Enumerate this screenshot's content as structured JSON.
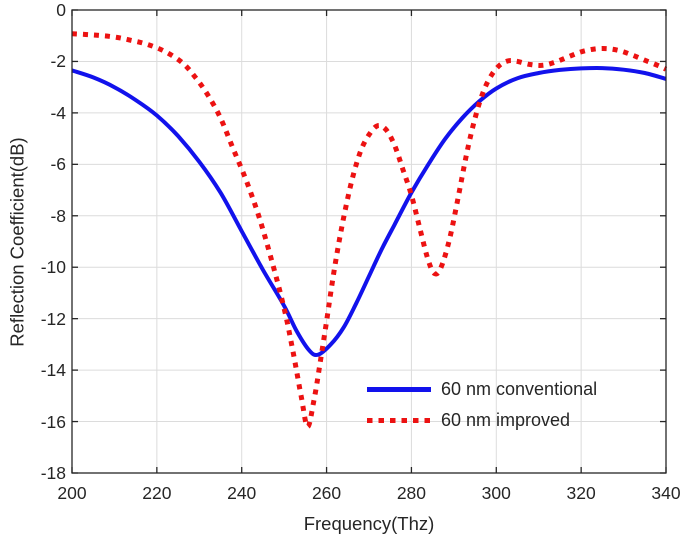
{
  "figure": {
    "background_color": "#ffffff",
    "axis_color": "#262626",
    "grid_color": "#dcdcdc",
    "tick_direction": "in"
  },
  "chart_data": {
    "type": "line",
    "title": "",
    "xlabel": "Frequency(Thz)",
    "ylabel": "Reflection Coefficient(dB)",
    "xlim": [
      200,
      340
    ],
    "ylim": [
      -18,
      0
    ],
    "xticks": [
      200,
      220,
      240,
      260,
      280,
      300,
      320,
      340
    ],
    "yticks": [
      0,
      -2,
      -4,
      -6,
      -8,
      -10,
      -12,
      -14,
      -16,
      -18
    ],
    "grid": true,
    "legend": {
      "position": "inside-lower-right",
      "border": false
    },
    "series": [
      {
        "name": "60 nm conventional",
        "color": "#1212ec",
        "line_style": "solid",
        "line_width": 4,
        "points": [
          [
            200,
            -2.35
          ],
          [
            205,
            -2.62
          ],
          [
            210,
            -3.0
          ],
          [
            215,
            -3.5
          ],
          [
            220,
            -4.1
          ],
          [
            225,
            -4.9
          ],
          [
            230,
            -5.9
          ],
          [
            235,
            -7.1
          ],
          [
            240,
            -8.6
          ],
          [
            245,
            -10.1
          ],
          [
            250,
            -11.5
          ],
          [
            253,
            -12.5
          ],
          [
            256,
            -13.25
          ],
          [
            258,
            -13.4
          ],
          [
            261,
            -13.0
          ],
          [
            264,
            -12.35
          ],
          [
            267,
            -11.4
          ],
          [
            270,
            -10.35
          ],
          [
            273,
            -9.3
          ],
          [
            276,
            -8.35
          ],
          [
            280,
            -7.1
          ],
          [
            284,
            -6.0
          ],
          [
            288,
            -5.0
          ],
          [
            292,
            -4.2
          ],
          [
            296,
            -3.55
          ],
          [
            300,
            -3.05
          ],
          [
            305,
            -2.65
          ],
          [
            310,
            -2.45
          ],
          [
            315,
            -2.33
          ],
          [
            320,
            -2.27
          ],
          [
            325,
            -2.26
          ],
          [
            330,
            -2.32
          ],
          [
            335,
            -2.45
          ],
          [
            340,
            -2.68
          ]
        ]
      },
      {
        "name": "60 nm improved",
        "color": "#ec1212",
        "line_style": "dashed",
        "line_width": 5,
        "points": [
          [
            200,
            -0.92
          ],
          [
            205,
            -0.97
          ],
          [
            210,
            -1.05
          ],
          [
            214,
            -1.18
          ],
          [
            218,
            -1.35
          ],
          [
            222,
            -1.62
          ],
          [
            226,
            -2.05
          ],
          [
            229,
            -2.6
          ],
          [
            232,
            -3.3
          ],
          [
            235,
            -4.2
          ],
          [
            238,
            -5.4
          ],
          [
            241,
            -6.6
          ],
          [
            244,
            -8.0
          ],
          [
            247,
            -9.7
          ],
          [
            250,
            -11.6
          ],
          [
            252,
            -13.2
          ],
          [
            254,
            -15.0
          ],
          [
            255.5,
            -16.2
          ],
          [
            257,
            -15.2
          ],
          [
            258.5,
            -13.7
          ],
          [
            260,
            -12.1
          ],
          [
            262,
            -9.9
          ],
          [
            264,
            -8.1
          ],
          [
            266,
            -6.6
          ],
          [
            268,
            -5.5
          ],
          [
            270,
            -4.85
          ],
          [
            272,
            -4.5
          ],
          [
            274,
            -4.65
          ],
          [
            276,
            -5.25
          ],
          [
            278,
            -6.2
          ],
          [
            280,
            -7.2
          ],
          [
            282,
            -8.5
          ],
          [
            284,
            -9.75
          ],
          [
            285.5,
            -10.25
          ],
          [
            287,
            -10.0
          ],
          [
            289,
            -8.9
          ],
          [
            291,
            -7.3
          ],
          [
            293,
            -5.6
          ],
          [
            295,
            -4.2
          ],
          [
            297,
            -3.15
          ],
          [
            299,
            -2.5
          ],
          [
            301,
            -2.12
          ],
          [
            303,
            -1.97
          ],
          [
            305,
            -2.0
          ],
          [
            308,
            -2.12
          ],
          [
            311,
            -2.15
          ],
          [
            314,
            -2.02
          ],
          [
            317,
            -1.82
          ],
          [
            320,
            -1.63
          ],
          [
            323,
            -1.52
          ],
          [
            326,
            -1.5
          ],
          [
            329,
            -1.58
          ],
          [
            332,
            -1.75
          ],
          [
            335,
            -1.95
          ],
          [
            338,
            -2.15
          ],
          [
            340,
            -2.3
          ]
        ]
      }
    ]
  }
}
